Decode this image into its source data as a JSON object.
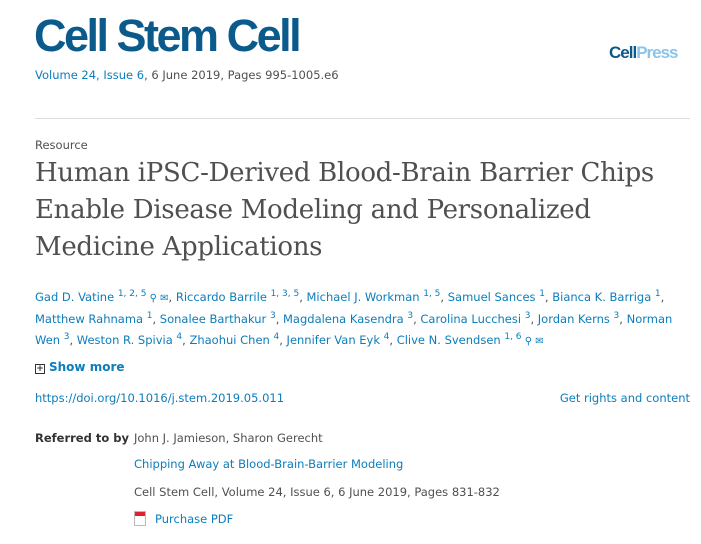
{
  "header": {
    "journal": "Cell Stem Cell",
    "volume_link": "Volume 24, Issue 6",
    "volume_rest": ", 6 June 2019, Pages 995-1005.e6",
    "publisher_logo_a": "Cell",
    "publisher_logo_b": "Press"
  },
  "article": {
    "type": "Resource",
    "title": "Human iPSC-Derived Blood-Brain Barrier Chips Enable Disease Modeling and Personalized Medicine Applications"
  },
  "authors": [
    {
      "name": "Gad D. Vatine",
      "sup": "1, 2, 5",
      "icons": [
        "person-icon",
        "mail-icon"
      ]
    },
    {
      "name": "Riccardo Barrile",
      "sup": "1, 3, 5"
    },
    {
      "name": "Michael J. Workman",
      "sup": "1, 5"
    },
    {
      "name": "Samuel Sances",
      "sup": "1"
    },
    {
      "name": "Bianca K. Barriga",
      "sup": "1"
    },
    {
      "name": "Matthew Rahnama",
      "sup": "1"
    },
    {
      "name": "Sonalee Barthakur",
      "sup": "3"
    },
    {
      "name": "Magdalena Kasendra",
      "sup": "3"
    },
    {
      "name": "Carolina Lucchesi",
      "sup": "3"
    },
    {
      "name": "Jordan Kerns",
      "sup": "3"
    },
    {
      "name": "Norman Wen",
      "sup": "3"
    },
    {
      "name": "Weston R. Spivia",
      "sup": "4"
    },
    {
      "name": "Zhaohui Chen",
      "sup": "4"
    },
    {
      "name": "Jennifer Van Eyk",
      "sup": "4"
    },
    {
      "name": "Clive N. Svendsen",
      "sup": "1, 6",
      "icons": [
        "person-icon",
        "mail-icon"
      ]
    }
  ],
  "show_more": "Show more",
  "doi": "https://doi.org/10.1016/j.stem.2019.05.011",
  "rights": "Get rights and content",
  "referred": {
    "label": "Referred to by",
    "authors": "John J. Jamieson, Sharon Gerecht",
    "title": "Chipping Away at Blood-Brain-Barrier Modeling",
    "source": "Cell Stem Cell, Volume 24, Issue 6, 6 June 2019, Pages 831-832",
    "purchase": "Purchase PDF"
  },
  "colors": {
    "link": "#0c7dbb",
    "brand": "#0b5a8c"
  }
}
